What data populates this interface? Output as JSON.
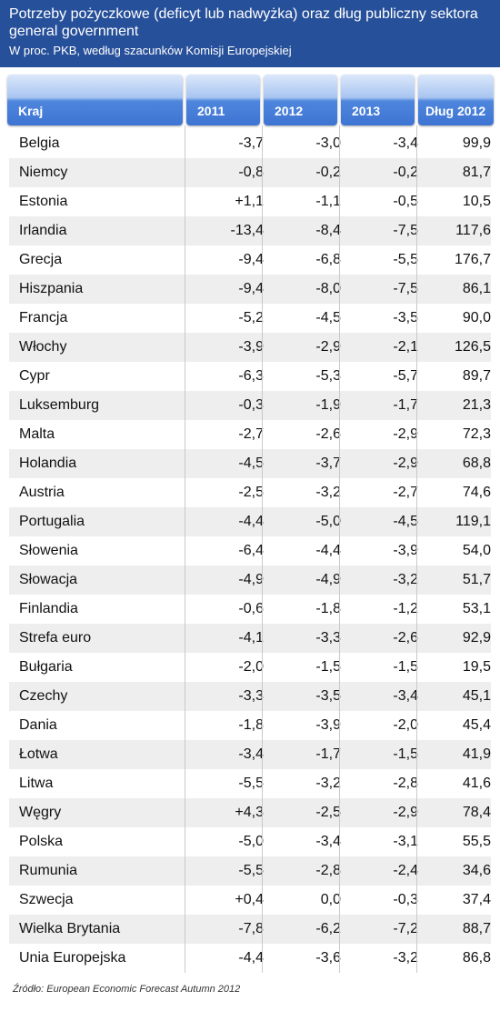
{
  "header": {
    "title": "Potrzeby pożyczkowe (deficyt lub nadwyżka) oraz dług publiczny sektora general government",
    "subtitle": "W proc. PKB, według szacunków Komisji Europejskiej"
  },
  "columns": [
    "Kraj",
    "2011",
    "2012",
    "2013",
    "Dług 2012"
  ],
  "source": "Źródło: European Economic Forecast Autumn 2012",
  "colors": {
    "header_bg": "#27509a",
    "table_head": "#3e74d2",
    "stripe": "#eeeeee"
  },
  "chart_data": {
    "type": "table",
    "columns": [
      "Kraj",
      "2011",
      "2012",
      "2013",
      "Dług 2012"
    ],
    "rows": [
      [
        "Belgia",
        "-3,7",
        "-3,0",
        "-3,4",
        "99,9"
      ],
      [
        "Niemcy",
        "-0,8",
        "-0,2",
        "-0,2",
        "81,7"
      ],
      [
        "Estonia",
        "+1,1",
        "-1,1",
        "-0,5",
        "10,5"
      ],
      [
        "Irlandia",
        "-13,4",
        "-8,4",
        "-7,5",
        "117,6"
      ],
      [
        "Grecja",
        "-9,4",
        "-6,8",
        "-5,5",
        "176,7"
      ],
      [
        "Hiszpania",
        "-9,4",
        "-8,0",
        "-7,5",
        "86,1"
      ],
      [
        "Francja",
        "-5,2",
        "-4,5",
        "-3,5",
        "90,0"
      ],
      [
        "Włochy",
        "-3,9",
        "-2,9",
        "-2,1",
        "126,5"
      ],
      [
        "Cypr",
        "-6,3",
        "-5,3",
        "-5,7",
        "89,7"
      ],
      [
        "Luksemburg",
        "-0,3",
        "-1,9",
        "-1,7",
        "21,3"
      ],
      [
        "Malta",
        "-2,7",
        "-2,6",
        "-2,9",
        "72,3"
      ],
      [
        "Holandia",
        "-4,5",
        "-3,7",
        "-2,9",
        "68,8"
      ],
      [
        "Austria",
        "-2,5",
        "-3,2",
        "-2,7",
        "74,6"
      ],
      [
        "Portugalia",
        "-4,4",
        "-5,0",
        "-4,5",
        "119,1"
      ],
      [
        "Słowenia",
        "-6,4",
        "-4,4",
        "-3,9",
        "54,0"
      ],
      [
        "Słowacja",
        "-4,9",
        "-4,9",
        "-3,2",
        "51,7"
      ],
      [
        "Finlandia",
        "-0,6",
        "-1,8",
        "-1,2",
        "53,1"
      ],
      [
        "Strefa euro",
        "-4,1",
        "-3,3",
        "-2,6",
        "92,9"
      ],
      [
        "Bułgaria",
        "-2,0",
        "-1,5",
        "-1,5",
        "19,5"
      ],
      [
        "Czechy",
        "-3,3",
        "-3,5",
        "-3,4",
        "45,1"
      ],
      [
        "Dania",
        "-1,8",
        "-3,9",
        "-2,0",
        "45,4"
      ],
      [
        "Łotwa",
        "-3,4",
        "-1,7",
        "-1,5",
        "41,9"
      ],
      [
        "Litwa",
        "-5,5",
        "-3,2",
        "-2,8",
        "41,6"
      ],
      [
        "Węgry",
        "+4,3",
        "-2,5",
        "-2,9",
        "78,4"
      ],
      [
        "Polska",
        "-5,0",
        "-3,4",
        "-3,1",
        "55,5"
      ],
      [
        "Rumunia",
        "-5,5",
        "-2,8",
        "-2,4",
        "34,6"
      ],
      [
        "Szwecja",
        "+0,4",
        "0,0",
        "-0,3",
        "37,4"
      ],
      [
        "Wielka Brytania",
        "-7,8",
        "-6,2",
        "-7,2",
        "88,7"
      ],
      [
        "Unia Europejska",
        "-4,4",
        "-3,6",
        "-3,2",
        "86,8"
      ]
    ]
  }
}
